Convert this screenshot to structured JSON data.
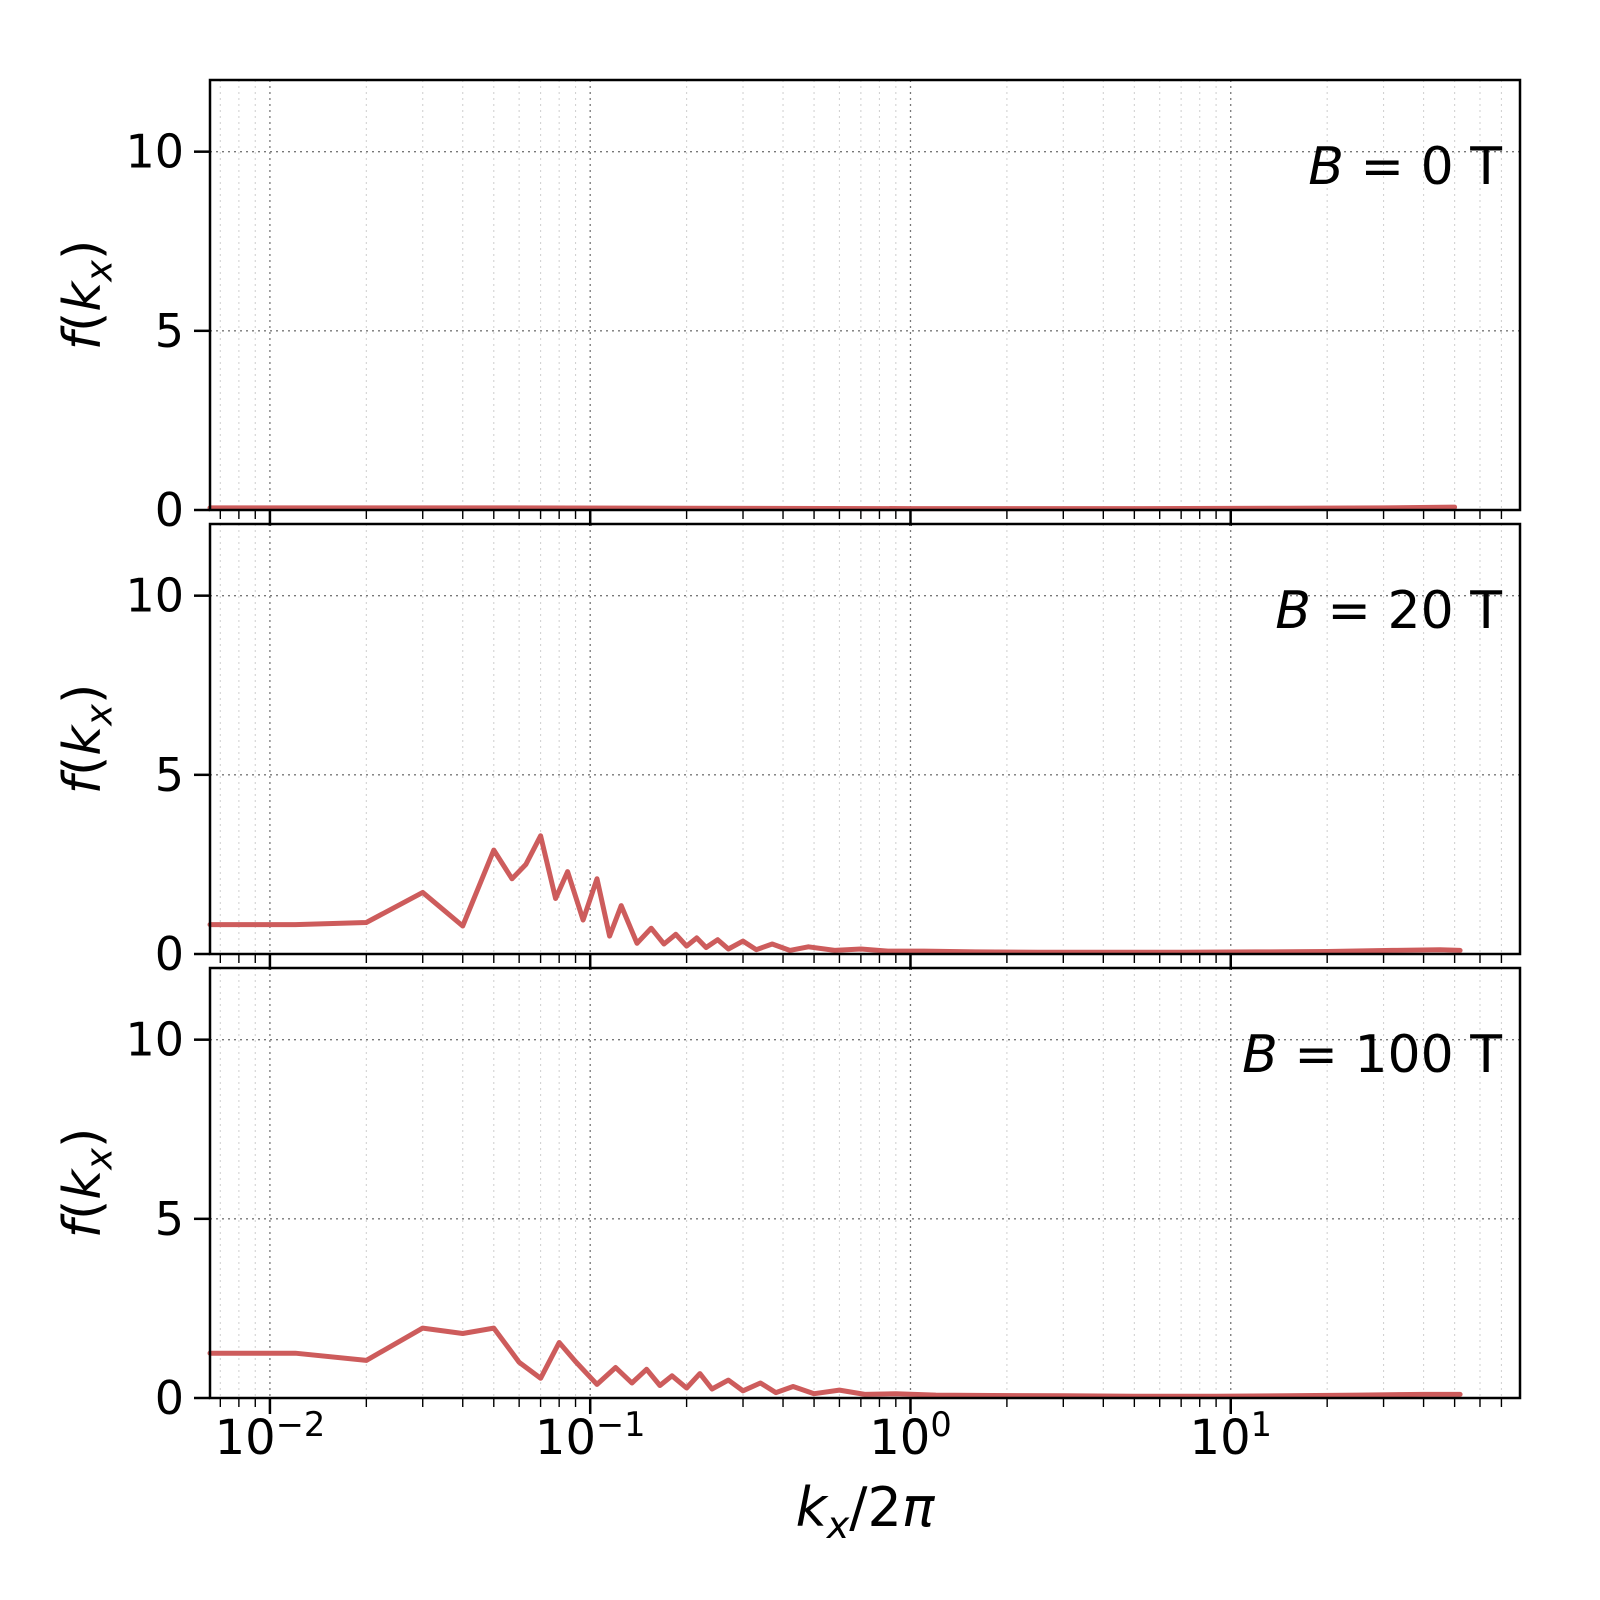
{
  "chart_data": {
    "type": "line",
    "x_scale": "log",
    "x_range": [
      0.0065,
      80
    ],
    "y_range": [
      0,
      12
    ],
    "y_ticks": [
      0,
      5,
      10
    ],
    "x_major_ticks": [
      0.01,
      0.1,
      1,
      10
    ],
    "x_tick_labels": [
      {
        "base": "10",
        "exp": "−2"
      },
      {
        "base": "10",
        "exp": "−1"
      },
      {
        "base": "10",
        "exp": "0"
      },
      {
        "base": "10",
        "exp": "1"
      }
    ],
    "xlabel_parts": [
      {
        "t": "k",
        "i": true
      },
      {
        "t": "x",
        "i": true,
        "sub": true
      },
      {
        "t": "/2",
        "i": false
      },
      {
        "t": "π",
        "i": true
      }
    ],
    "ylabel_parts": [
      {
        "t": "f",
        "i": true
      },
      {
        "t": "(",
        "i": false
      },
      {
        "t": "k",
        "i": true
      },
      {
        "t": "x",
        "i": true,
        "sub": true
      },
      {
        "t": ")",
        "i": false
      }
    ],
    "line_color": "#cd5c5c",
    "grid": {
      "major_color": "#777777",
      "minor_color": "#d2d2d2",
      "style": "dotted"
    },
    "panels": [
      {
        "label_parts": [
          {
            "t": "B",
            "i": true
          },
          {
            "t": " = 0 T",
            "i": false
          }
        ],
        "series": [
          [
            0.0065,
            0.06
          ],
          [
            0.05,
            0.06
          ],
          [
            0.2,
            0.05
          ],
          [
            1,
            0.04
          ],
          [
            5,
            0.04
          ],
          [
            15,
            0.05
          ],
          [
            30,
            0.06
          ],
          [
            50,
            0.08
          ]
        ]
      },
      {
        "label_parts": [
          {
            "t": "B",
            "i": true
          },
          {
            "t": " = 20 T",
            "i": false
          }
        ],
        "series": [
          [
            0.0065,
            0.82
          ],
          [
            0.012,
            0.82
          ],
          [
            0.02,
            0.88
          ],
          [
            0.03,
            1.72
          ],
          [
            0.04,
            0.78
          ],
          [
            0.05,
            2.9
          ],
          [
            0.057,
            2.1
          ],
          [
            0.063,
            2.5
          ],
          [
            0.07,
            3.3
          ],
          [
            0.078,
            1.55
          ],
          [
            0.085,
            2.3
          ],
          [
            0.095,
            0.95
          ],
          [
            0.105,
            2.1
          ],
          [
            0.115,
            0.5
          ],
          [
            0.125,
            1.35
          ],
          [
            0.14,
            0.3
          ],
          [
            0.155,
            0.72
          ],
          [
            0.17,
            0.28
          ],
          [
            0.185,
            0.55
          ],
          [
            0.2,
            0.22
          ],
          [
            0.215,
            0.45
          ],
          [
            0.23,
            0.18
          ],
          [
            0.25,
            0.4
          ],
          [
            0.27,
            0.14
          ],
          [
            0.3,
            0.36
          ],
          [
            0.33,
            0.12
          ],
          [
            0.37,
            0.28
          ],
          [
            0.42,
            0.1
          ],
          [
            0.48,
            0.2
          ],
          [
            0.58,
            0.1
          ],
          [
            0.7,
            0.14
          ],
          [
            0.85,
            0.08
          ],
          [
            1.1,
            0.08
          ],
          [
            1.6,
            0.06
          ],
          [
            2.5,
            0.05
          ],
          [
            4,
            0.05
          ],
          [
            7,
            0.05
          ],
          [
            12,
            0.06
          ],
          [
            20,
            0.07
          ],
          [
            32,
            0.1
          ],
          [
            45,
            0.12
          ],
          [
            52,
            0.1
          ]
        ]
      },
      {
        "label_parts": [
          {
            "t": "B",
            "i": true
          },
          {
            "t": " = 100 T",
            "i": false
          }
        ],
        "series": [
          [
            0.0065,
            1.25
          ],
          [
            0.012,
            1.25
          ],
          [
            0.02,
            1.05
          ],
          [
            0.03,
            1.95
          ],
          [
            0.04,
            1.8
          ],
          [
            0.05,
            1.95
          ],
          [
            0.06,
            1.0
          ],
          [
            0.07,
            0.55
          ],
          [
            0.08,
            1.55
          ],
          [
            0.09,
            1.02
          ],
          [
            0.105,
            0.38
          ],
          [
            0.12,
            0.85
          ],
          [
            0.135,
            0.42
          ],
          [
            0.15,
            0.8
          ],
          [
            0.165,
            0.35
          ],
          [
            0.18,
            0.62
          ],
          [
            0.2,
            0.28
          ],
          [
            0.22,
            0.68
          ],
          [
            0.24,
            0.25
          ],
          [
            0.27,
            0.5
          ],
          [
            0.3,
            0.2
          ],
          [
            0.34,
            0.42
          ],
          [
            0.38,
            0.15
          ],
          [
            0.43,
            0.32
          ],
          [
            0.5,
            0.12
          ],
          [
            0.6,
            0.22
          ],
          [
            0.72,
            0.1
          ],
          [
            0.9,
            0.12
          ],
          [
            1.2,
            0.08
          ],
          [
            1.8,
            0.07
          ],
          [
            3,
            0.06
          ],
          [
            5,
            0.05
          ],
          [
            9,
            0.05
          ],
          [
            15,
            0.06
          ],
          [
            25,
            0.08
          ],
          [
            40,
            0.1
          ],
          [
            52,
            0.1
          ]
        ]
      }
    ]
  }
}
